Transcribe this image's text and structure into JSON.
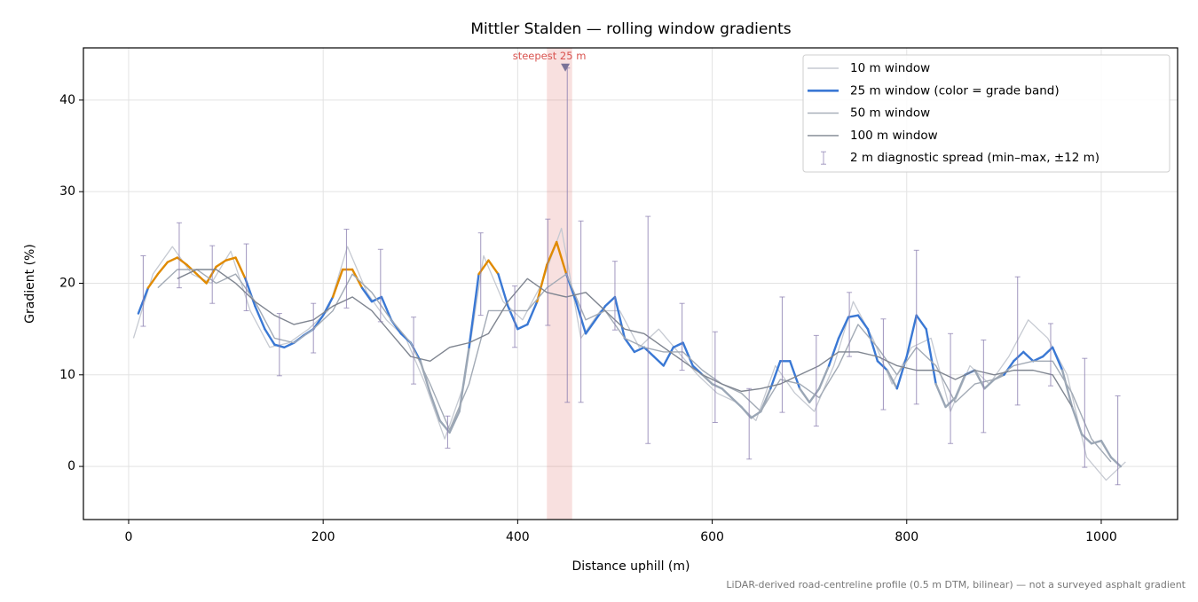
{
  "chart_data": {
    "type": "line",
    "title": "Mittler Stalden — rolling window gradients",
    "xlabel": "Distance uphill (m)",
    "ylabel": "Gradient (%)",
    "footnote": "LiDAR-derived road-centreline profile (0.5 m DTM, bilinear) — not a surveyed asphalt gradient",
    "xlim": [
      -46.5,
      1078.5
    ],
    "ylim": [
      -5.8,
      45.7
    ],
    "xticks": [
      0,
      200,
      400,
      600,
      800,
      1000
    ],
    "yticks": [
      0,
      10,
      20,
      30,
      40
    ],
    "grid": true,
    "legend": "upper right",
    "band_thresholds": [
      10,
      20
    ],
    "band_colors": [
      "#9aa6b5",
      "#3a78d4",
      "#e08a00"
    ],
    "series": [
      {
        "name": "10 m window",
        "color": "#c6cad2",
        "x": [
          5,
          25,
          45,
          65,
          85,
          105,
          125,
          145,
          165,
          185,
          205,
          225,
          245,
          265,
          285,
          305,
          325,
          345,
          365,
          385,
          405,
          425,
          445,
          465,
          485,
          505,
          525,
          545,
          565,
          585,
          605,
          625,
          645,
          665,
          685,
          705,
          725,
          745,
          765,
          785,
          805,
          825,
          845,
          865,
          885,
          905,
          925,
          945,
          965,
          985,
          1005,
          1025
        ],
        "values": [
          14,
          21,
          24,
          21,
          20,
          23.5,
          17,
          13,
          13.5,
          15,
          17,
          24,
          19,
          16,
          14,
          9,
          3,
          9,
          23,
          18,
          16,
          20,
          26,
          14,
          17,
          17,
          13,
          15,
          12.5,
          10,
          8,
          7,
          5,
          11,
          8,
          6,
          11,
          18,
          14,
          9,
          13,
          14,
          6,
          11,
          9,
          12,
          16,
          14,
          10,
          1,
          -1.5,
          0.5
        ]
      },
      {
        "name": "25 m window (color = grade band)",
        "color": "#3a78d4",
        "color_by_band": true,
        "x": [
          10,
          20,
          30,
          40,
          50,
          60,
          70,
          80,
          90,
          100,
          110,
          120,
          130,
          140,
          150,
          160,
          170,
          180,
          190,
          200,
          210,
          220,
          230,
          240,
          250,
          260,
          270,
          280,
          290,
          300,
          310,
          320,
          330,
          340,
          350,
          360,
          370,
          380,
          390,
          400,
          410,
          420,
          430,
          440,
          450,
          460,
          470,
          480,
          490,
          500,
          510,
          520,
          530,
          540,
          550,
          560,
          570,
          580,
          590,
          600,
          610,
          620,
          630,
          640,
          650,
          660,
          670,
          680,
          690,
          700,
          710,
          720,
          730,
          740,
          750,
          760,
          770,
          780,
          790,
          800,
          810,
          820,
          830,
          840,
          850,
          860,
          870,
          880,
          890,
          900,
          910,
          920,
          930,
          940,
          950,
          960,
          970,
          980,
          990,
          1000,
          1010,
          1020
        ],
        "values": [
          16.7,
          19.5,
          21,
          22.3,
          22.8,
          22,
          21,
          20,
          21.8,
          22.5,
          22.8,
          20.5,
          17.5,
          15,
          13.3,
          13,
          13.5,
          14.3,
          15,
          16.5,
          18.5,
          21.5,
          21.5,
          19.5,
          18,
          18.5,
          16,
          14.5,
          13.5,
          11.5,
          8,
          5,
          3.7,
          6,
          13,
          21,
          22.5,
          21,
          17.5,
          15,
          15.5,
          18,
          22,
          24.5,
          21,
          18,
          14.5,
          16,
          17.5,
          18.5,
          14,
          12.5,
          13,
          12,
          11,
          13,
          13.5,
          11,
          10,
          9,
          8.5,
          7.5,
          6.5,
          5.3,
          6,
          8.5,
          11.5,
          11.5,
          8.5,
          7,
          8.5,
          11,
          14,
          16.3,
          16.5,
          15,
          11.5,
          10.5,
          8.5,
          12,
          16.5,
          15,
          9,
          6.5,
          7.5,
          10,
          10.5,
          8.5,
          9.5,
          10,
          11.5,
          12.5,
          11.5,
          12,
          13,
          10.5,
          6.5,
          3.5,
          2.5,
          2.8,
          1,
          0
        ]
      },
      {
        "name": "50 m window",
        "color": "#a2aab5",
        "x": [
          30,
          50,
          70,
          90,
          110,
          130,
          150,
          170,
          190,
          210,
          230,
          250,
          270,
          290,
          310,
          330,
          350,
          370,
          390,
          410,
          430,
          450,
          470,
          490,
          510,
          530,
          550,
          570,
          590,
          610,
          630,
          650,
          670,
          690,
          710,
          730,
          750,
          770,
          790,
          810,
          830,
          850,
          870,
          890,
          910,
          930,
          950,
          970,
          990,
          1010
        ],
        "values": [
          19.5,
          21.5,
          21.5,
          20,
          21,
          18,
          14,
          13.5,
          15,
          17,
          21,
          19,
          16,
          13.5,
          9,
          4,
          9,
          17,
          17,
          17,
          19.5,
          21,
          16,
          17,
          14,
          13,
          12.5,
          12.5,
          10.5,
          9,
          8,
          6,
          9.5,
          9,
          7.5,
          11,
          15.5,
          13,
          10,
          13,
          11,
          7,
          9,
          9.5,
          11,
          11.5,
          11.5,
          8,
          3,
          0.5
        ]
      },
      {
        "name": "100 m window",
        "color": "#7f8590",
        "x": [
          50,
          70,
          90,
          110,
          130,
          150,
          170,
          190,
          210,
          230,
          250,
          270,
          290,
          310,
          330,
          350,
          370,
          390,
          410,
          430,
          450,
          470,
          490,
          510,
          530,
          550,
          570,
          590,
          610,
          630,
          650,
          670,
          690,
          710,
          730,
          750,
          770,
          790,
          810,
          830,
          850,
          870,
          890,
          910,
          930,
          950,
          970
        ],
        "values": [
          20.5,
          21.5,
          21.5,
          20,
          18,
          16.5,
          15.5,
          16,
          17.5,
          18.5,
          17,
          14.5,
          12,
          11.5,
          13,
          13.5,
          14.5,
          18,
          20.5,
          19,
          18.5,
          19,
          17,
          15,
          14.5,
          13,
          11.5,
          10,
          9,
          8.2,
          8.5,
          9,
          10,
          11,
          12.5,
          12.5,
          12,
          11,
          10.5,
          10.5,
          9.5,
          10.5,
          10,
          10.5,
          10.5,
          10,
          6.5
        ]
      }
    ],
    "spread": {
      "name": "2 m diagnostic spread (min–max, ±12 m)",
      "color": "#8b7fb0",
      "x": [
        15,
        52,
        86,
        121,
        155,
        190,
        224,
        259,
        293,
        328,
        362,
        397,
        431,
        451,
        465,
        500,
        534,
        569,
        603,
        638,
        672,
        707,
        741,
        776,
        810,
        845,
        879,
        914,
        948,
        983,
        1017
      ],
      "low": [
        15.3,
        19.5,
        17.8,
        17,
        9.9,
        12.4,
        17.3,
        15.8,
        9,
        2,
        16.5,
        13,
        15.4,
        7,
        7,
        14.9,
        2.5,
        10.5,
        4.8,
        0.8,
        5.9,
        4.4,
        12,
        6.2,
        6.8,
        2.5,
        3.7,
        6.7,
        8.8,
        -0.1,
        -2
      ],
      "high": [
        23,
        26.6,
        24.1,
        24.3,
        16.7,
        17.8,
        25.9,
        23.7,
        16.3,
        5.5,
        25.5,
        19.7,
        27,
        43.5,
        26.8,
        22.4,
        27.3,
        17.8,
        14.7,
        8.5,
        18.5,
        14.3,
        19,
        16.1,
        23.6,
        14.5,
        13.8,
        20.7,
        15.6,
        11.8,
        7.7
      ]
    },
    "highlight": {
      "label": "steepest 25 m",
      "xlim": [
        430,
        456
      ],
      "x": 449,
      "y": 43.5,
      "color": "#d9534f"
    }
  }
}
